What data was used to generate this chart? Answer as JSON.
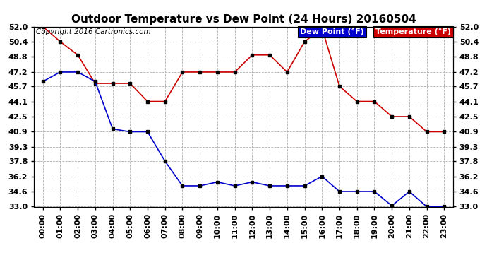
{
  "title": "Outdoor Temperature vs Dew Point (24 Hours) 20160504",
  "copyright_text": "Copyright 2016 Cartronics.com",
  "legend_dew": "Dew Point (°F)",
  "legend_temp": "Temperature (°F)",
  "x_labels": [
    "00:00",
    "01:00",
    "02:00",
    "03:00",
    "04:00",
    "05:00",
    "06:00",
    "07:00",
    "08:00",
    "09:00",
    "10:00",
    "11:00",
    "12:00",
    "13:00",
    "14:00",
    "15:00",
    "16:00",
    "17:00",
    "18:00",
    "19:00",
    "20:00",
    "21:00",
    "22:00",
    "23:00"
  ],
  "temperature": [
    52.0,
    50.4,
    49.0,
    46.0,
    46.0,
    46.0,
    44.1,
    44.1,
    47.2,
    47.2,
    47.2,
    47.2,
    49.0,
    49.0,
    47.2,
    50.4,
    51.8,
    45.7,
    44.1,
    44.1,
    42.5,
    42.5,
    40.9,
    40.9
  ],
  "dew_point": [
    46.2,
    47.2,
    47.2,
    46.2,
    41.2,
    40.9,
    40.9,
    37.8,
    35.2,
    35.2,
    35.6,
    35.2,
    35.6,
    35.2,
    35.2,
    35.2,
    36.2,
    34.6,
    34.6,
    34.6,
    33.1,
    34.6,
    33.0,
    33.0
  ],
  "ylim": [
    33.0,
    52.0
  ],
  "yticks": [
    33.0,
    34.6,
    36.2,
    37.8,
    39.3,
    40.9,
    42.5,
    44.1,
    45.7,
    47.2,
    48.8,
    50.4,
    52.0
  ],
  "temp_color": "#cc0000",
  "dew_color": "#0000cc",
  "marker_color": "#000000",
  "bg_color": "#ffffff",
  "grid_color": "#b0b0b0",
  "title_fontsize": 11,
  "tick_fontsize": 8,
  "legend_fontsize": 8,
  "copyright_fontsize": 7.5
}
